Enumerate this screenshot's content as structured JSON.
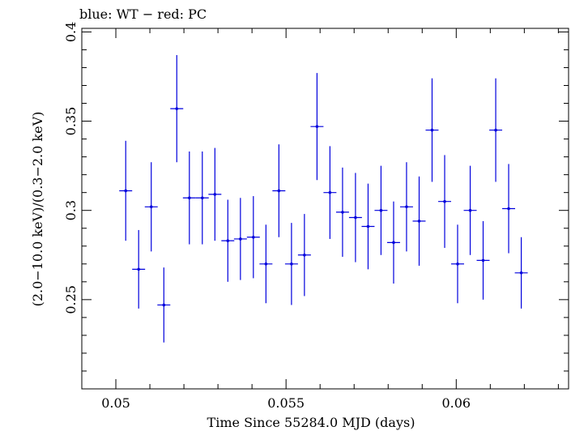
{
  "chart_data": {
    "type": "scatter",
    "title": "blue: WT − red: PC",
    "xlabel": "Time Since 55284.0 MJD (days)",
    "ylabel": "(2.0−10.0 keV)/(0.3−2.0 keV)",
    "xlim": [
      0.049,
      0.0633
    ],
    "ylim": [
      0.2,
      0.402
    ],
    "grid": false,
    "x_ticks": [
      {
        "value": 0.05,
        "label": "0.05"
      },
      {
        "value": 0.055,
        "label": "0.055"
      },
      {
        "value": 0.06,
        "label": "0.06"
      }
    ],
    "y_ticks": [
      {
        "value": 0.25,
        "label": "0.25"
      },
      {
        "value": 0.3,
        "label": "0.3"
      },
      {
        "value": 0.35,
        "label": "0.35"
      },
      {
        "value": 0.4,
        "label": "0.4"
      }
    ],
    "series": [
      {
        "color": "#0000dd",
        "points": [
          {
            "x": 0.05029,
            "xerr": 0.00019,
            "y": 0.311,
            "yerr": 0.028
          },
          {
            "x": 0.05067,
            "xerr": 0.00019,
            "y": 0.267,
            "yerr": 0.022
          },
          {
            "x": 0.05104,
            "xerr": 0.00019,
            "y": 0.302,
            "yerr": 0.025
          },
          {
            "x": 0.05141,
            "xerr": 0.00019,
            "y": 0.247,
            "yerr": 0.021
          },
          {
            "x": 0.05179,
            "xerr": 0.00019,
            "y": 0.357,
            "yerr": 0.03
          },
          {
            "x": 0.05216,
            "xerr": 0.00019,
            "y": 0.307,
            "yerr": 0.026
          },
          {
            "x": 0.05254,
            "xerr": 0.00019,
            "y": 0.307,
            "yerr": 0.026
          },
          {
            "x": 0.05291,
            "xerr": 0.00019,
            "y": 0.309,
            "yerr": 0.026
          },
          {
            "x": 0.05329,
            "xerr": 0.00019,
            "y": 0.283,
            "yerr": 0.023
          },
          {
            "x": 0.05366,
            "xerr": 0.00019,
            "y": 0.284,
            "yerr": 0.023
          },
          {
            "x": 0.05404,
            "xerr": 0.00019,
            "y": 0.285,
            "yerr": 0.023
          },
          {
            "x": 0.05441,
            "xerr": 0.00019,
            "y": 0.27,
            "yerr": 0.022
          },
          {
            "x": 0.05479,
            "xerr": 0.00019,
            "y": 0.311,
            "yerr": 0.026
          },
          {
            "x": 0.05516,
            "xerr": 0.00019,
            "y": 0.27,
            "yerr": 0.023
          },
          {
            "x": 0.05554,
            "xerr": 0.00019,
            "y": 0.275,
            "yerr": 0.023
          },
          {
            "x": 0.05591,
            "xerr": 0.00019,
            "y": 0.347,
            "yerr": 0.03
          },
          {
            "x": 0.05629,
            "xerr": 0.00019,
            "y": 0.31,
            "yerr": 0.026
          },
          {
            "x": 0.05666,
            "xerr": 0.00019,
            "y": 0.299,
            "yerr": 0.025
          },
          {
            "x": 0.05704,
            "xerr": 0.00019,
            "y": 0.296,
            "yerr": 0.025
          },
          {
            "x": 0.05741,
            "xerr": 0.00019,
            "y": 0.291,
            "yerr": 0.024
          },
          {
            "x": 0.05779,
            "xerr": 0.00019,
            "y": 0.3,
            "yerr": 0.025
          },
          {
            "x": 0.05816,
            "xerr": 0.00019,
            "y": 0.282,
            "yerr": 0.023
          },
          {
            "x": 0.05854,
            "xerr": 0.00019,
            "y": 0.302,
            "yerr": 0.025
          },
          {
            "x": 0.05891,
            "xerr": 0.00019,
            "y": 0.294,
            "yerr": 0.025
          },
          {
            "x": 0.05929,
            "xerr": 0.00019,
            "y": 0.345,
            "yerr": 0.029
          },
          {
            "x": 0.05966,
            "xerr": 0.00019,
            "y": 0.305,
            "yerr": 0.026
          },
          {
            "x": 0.06004,
            "xerr": 0.00019,
            "y": 0.27,
            "yerr": 0.022
          },
          {
            "x": 0.06041,
            "xerr": 0.00019,
            "y": 0.3,
            "yerr": 0.025
          },
          {
            "x": 0.06079,
            "xerr": 0.00019,
            "y": 0.272,
            "yerr": 0.022
          },
          {
            "x": 0.06116,
            "xerr": 0.00019,
            "y": 0.345,
            "yerr": 0.029
          },
          {
            "x": 0.06154,
            "xerr": 0.00019,
            "y": 0.301,
            "yerr": 0.025
          },
          {
            "x": 0.06191,
            "xerr": 0.00019,
            "y": 0.265,
            "yerr": 0.02
          }
        ]
      }
    ]
  }
}
